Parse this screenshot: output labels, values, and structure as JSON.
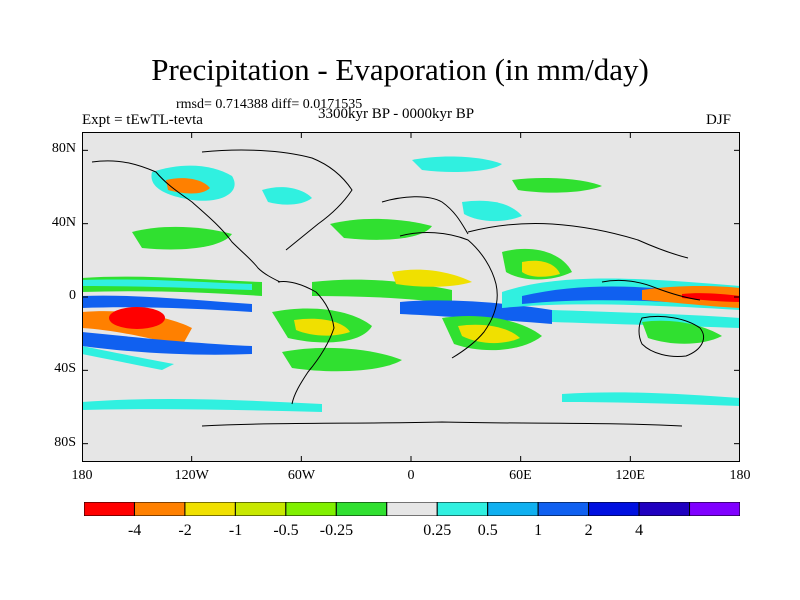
{
  "title": "Precipitation - Evaporation (in mm/day)",
  "stats": "rmsd= 0.714388 diff= 0.0171535",
  "experiment": "Expt = tEwTL-tevta",
  "period": "3300kyr BP - 0000kyr BP",
  "season": "DJF",
  "y_ticks": [
    {
      "label": "80N",
      "lat": 80
    },
    {
      "label": "40N",
      "lat": 40
    },
    {
      "label": "0",
      "lat": 0
    },
    {
      "label": "40S",
      "lat": -40
    },
    {
      "label": "80S",
      "lat": -80
    }
  ],
  "x_ticks": [
    {
      "label": "180",
      "lon": -180
    },
    {
      "label": "120W",
      "lon": -120
    },
    {
      "label": "60W",
      "lon": -60
    },
    {
      "label": "0",
      "lon": 0
    },
    {
      "label": "60E",
      "lon": 60
    },
    {
      "label": "120E",
      "lon": 120
    },
    {
      "label": "180",
      "lon": 180
    }
  ],
  "colorbar": {
    "colors": [
      "#ff0000",
      "#ff8000",
      "#f0e000",
      "#c8e800",
      "#80f000",
      "#30e030",
      "#e6e6e6",
      "#30f0e0",
      "#10b0f0",
      "#1060f0",
      "#0010e0",
      "#2000c0",
      "#8000ff"
    ],
    "labels": [
      "-4",
      "-2",
      "-1",
      "-0.5",
      "-0.25",
      "0.25",
      "0.5",
      "1",
      "2",
      "4"
    ]
  },
  "colors": {
    "land_background": "#e6e6e6",
    "frame": "#000000"
  }
}
